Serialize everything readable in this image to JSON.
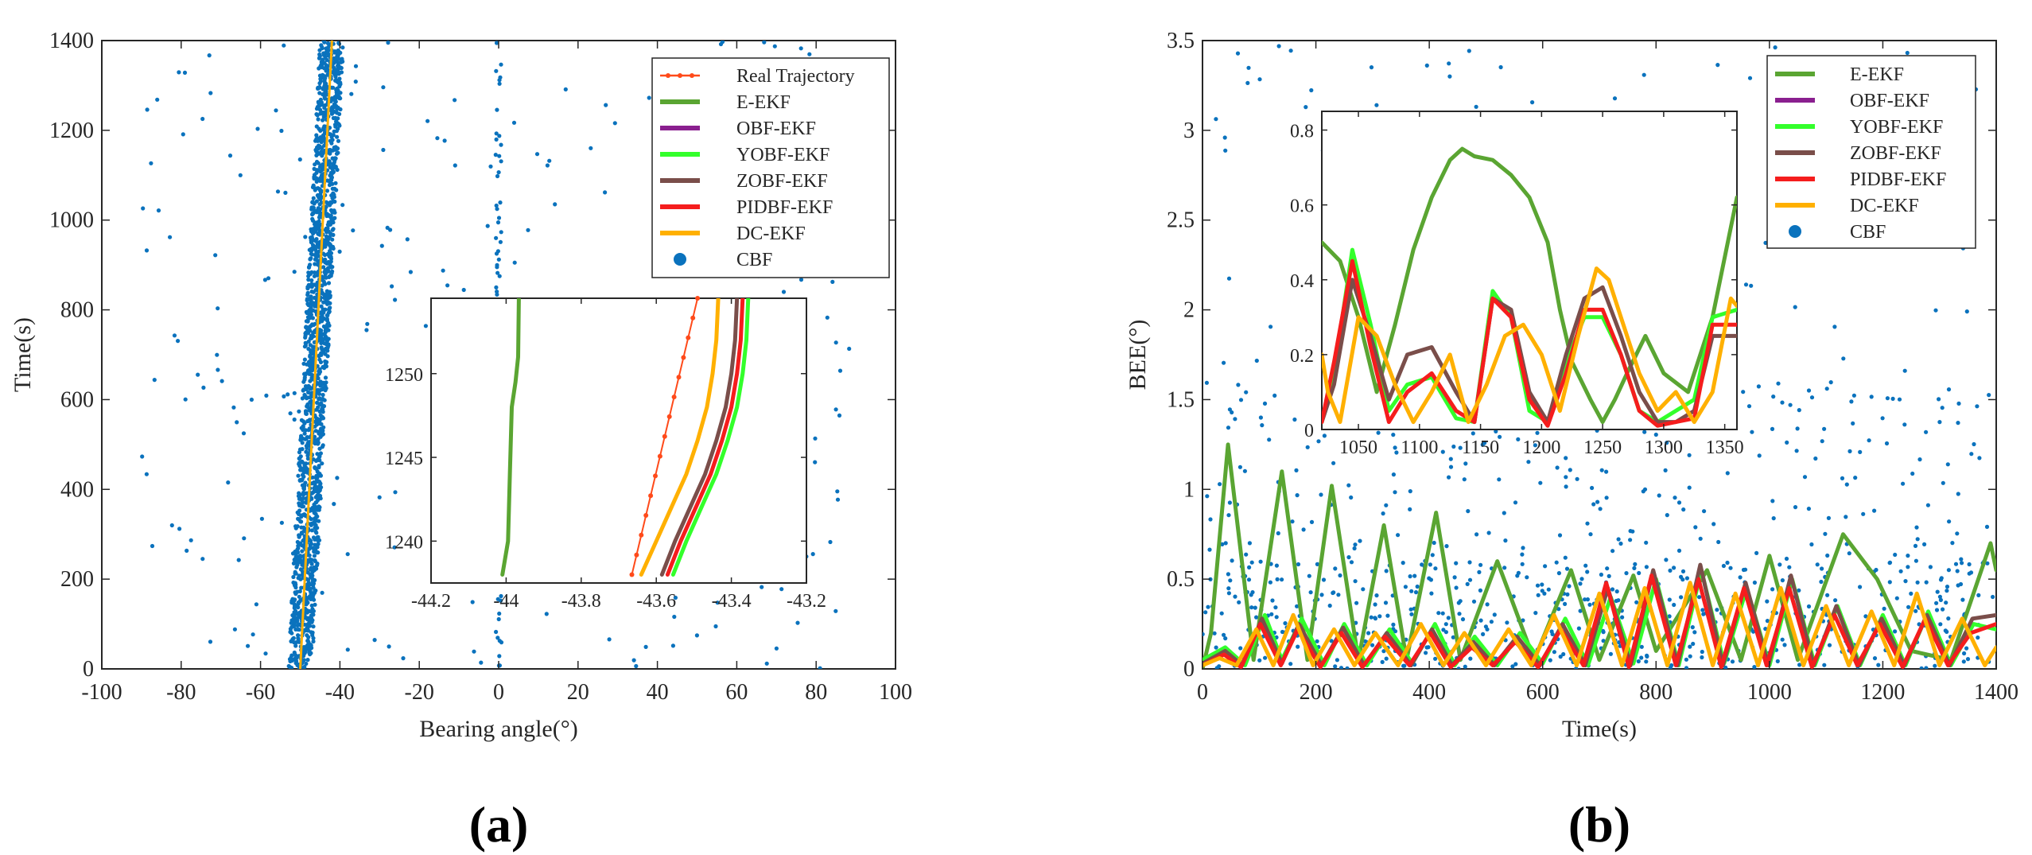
{
  "colors": {
    "real": "#ff4a1a",
    "eekf": "#5aa532",
    "obf": "#8a1f8f",
    "yobf": "#33ff2b",
    "zobf": "#7a4e4a",
    "pidbf": "#f51d1d",
    "dc": "#ffb000",
    "cbf": "#0a72bd"
  },
  "chart_data": [
    {
      "id": "a",
      "panel_label": "(a)",
      "type": "scatter",
      "xlabel": "Bearing angle(°)",
      "ylabel": "Time(s)",
      "xlim": [
        -100,
        100
      ],
      "ylim": [
        0,
        1400
      ],
      "xticks": [
        -100,
        -80,
        -60,
        -40,
        -20,
        0,
        20,
        40,
        60,
        80,
        100
      ],
      "yticks": [
        0,
        200,
        400,
        600,
        800,
        1000,
        1200,
        1400
      ],
      "legend": [
        "Real Trajectory",
        "E-EKF",
        "OBF-EKF",
        "YOBF-EKF",
        "ZOBF-EKF",
        "PIDBF-EKF",
        "DC-EKF",
        "CBF"
      ],
      "legend_position": "top-right",
      "series": [
        {
          "name": "Real Trajectory",
          "x_start": -50,
          "x_end": -42,
          "t_range": [
            0,
            1400
          ]
        },
        {
          "name": "DC-EKF",
          "x_start": -50,
          "x_end": -42,
          "t_range": [
            0,
            1400
          ]
        },
        {
          "name": "CBF",
          "band_center_start": -50,
          "band_center_end": -42,
          "band_halfwidth": 3,
          "outlier_range": [
            -90,
            90
          ]
        }
      ],
      "inset": {
        "xlim": [
          -44.2,
          -43.2
        ],
        "ylim": [
          1237.5,
          1254.5
        ],
        "xticks": [
          -44.2,
          -44,
          -43.8,
          -43.6,
          -43.4,
          -43.2
        ],
        "yticks": [
          1240,
          1245,
          1250
        ],
        "series": [
          {
            "name": "E-EKF",
            "t": [
              1238,
              1240,
              1244,
              1248,
              1249.5,
              1251,
              1254.5
            ],
            "x": [
              -44.01,
              -43.995,
              -43.99,
              -43.985,
              -43.975,
              -43.968,
              -43.966
            ]
          },
          {
            "name": "Real Trajectory",
            "t": [
              1238,
              1254.5
            ],
            "x": [
              -43.665,
              -43.49
            ]
          },
          {
            "name": "DC-EKF",
            "t": [
              1238,
              1240,
              1242,
              1244,
              1246,
              1248,
              1250,
              1252,
              1254.5
            ],
            "x": [
              -43.64,
              -43.6,
              -43.56,
              -43.52,
              -43.49,
              -43.465,
              -43.45,
              -43.44,
              -43.435
            ]
          },
          {
            "name": "ZOBF-EKF",
            "t": [
              1238,
              1240,
              1242,
              1244,
              1246,
              1248,
              1250,
              1252,
              1254.5
            ],
            "x": [
              -43.585,
              -43.55,
              -43.51,
              -43.47,
              -43.44,
              -43.415,
              -43.4,
              -43.39,
              -43.385
            ]
          },
          {
            "name": "YOBF-EKF",
            "t": [
              1238,
              1240,
              1242,
              1244,
              1246,
              1248,
              1250,
              1252,
              1254.5
            ],
            "x": [
              -43.555,
              -43.52,
              -43.48,
              -43.44,
              -43.41,
              -43.385,
              -43.37,
              -43.36,
              -43.355
            ]
          },
          {
            "name": "PIDBF-EKF",
            "t": [
              1238,
              1240,
              1242,
              1244,
              1246,
              1248,
              1250,
              1252,
              1254.5
            ],
            "x": [
              -43.57,
              -43.535,
              -43.495,
              -43.455,
              -43.425,
              -43.4,
              -43.385,
              -43.375,
              -43.37
            ]
          }
        ]
      }
    },
    {
      "id": "b",
      "panel_label": "(b)",
      "type": "line",
      "xlabel": "Time(s)",
      "ylabel": "BEE(°)",
      "xlim": [
        0,
        1400
      ],
      "ylim": [
        0,
        3.5
      ],
      "xticks": [
        0,
        200,
        400,
        600,
        800,
        1000,
        1200,
        1400
      ],
      "yticks": [
        0,
        0.5,
        1,
        1.5,
        2,
        2.5,
        3,
        3.5
      ],
      "legend": [
        "E-EKF",
        "OBF-EKF",
        "YOBF-EKF",
        "ZOBF-EKF",
        "PIDBF-EKF",
        "DC-EKF",
        "CBF"
      ],
      "legend_position": "top-right",
      "series": [
        {
          "name": "E-EKF",
          "t": [
            0,
            15,
            45,
            90,
            140,
            185,
            228,
            275,
            320,
            360,
            412,
            455,
            520,
            585,
            650,
            700,
            760,
            800,
            890,
            950,
            1000,
            1050,
            1130,
            1190,
            1250,
            1320,
            1390,
            1400
          ],
          "y": [
            0,
            0.2,
            1.25,
            0.05,
            1.1,
            0.05,
            1.02,
            0.05,
            0.8,
            0.05,
            0.87,
            0.05,
            0.6,
            0.05,
            0.55,
            0.05,
            0.52,
            0.1,
            0.55,
            0.05,
            0.63,
            0.05,
            0.75,
            0.5,
            0.1,
            0.05,
            0.7,
            0.55
          ]
        },
        {
          "name": "YOBF-EKF",
          "t": [
            0,
            40,
            75,
            110,
            140,
            175,
            215,
            250,
            290,
            330,
            370,
            410,
            445,
            480,
            520,
            560,
            600,
            640,
            680,
            720,
            760,
            800,
            840,
            880,
            920,
            960,
            1000,
            1040,
            1080,
            1120,
            1160,
            1200,
            1240,
            1280,
            1320,
            1360,
            1400
          ],
          "y": [
            0.05,
            0.12,
            0.02,
            0.3,
            0.05,
            0.28,
            0.02,
            0.25,
            0.02,
            0.22,
            0.03,
            0.25,
            0.02,
            0.18,
            0.02,
            0.2,
            0.03,
            0.28,
            0.02,
            0.4,
            0.03,
            0.5,
            0.02,
            0.55,
            0.03,
            0.45,
            0.02,
            0.5,
            0.02,
            0.35,
            0.02,
            0.3,
            0.02,
            0.32,
            0.02,
            0.25,
            0.22
          ]
        },
        {
          "name": "ZOBF-EKF",
          "t": [
            0,
            40,
            70,
            105,
            140,
            170,
            210,
            248,
            285,
            325,
            368,
            405,
            440,
            478,
            515,
            555,
            595,
            635,
            675,
            715,
            755,
            795,
            838,
            878,
            918,
            958,
            998,
            1038,
            1078,
            1118,
            1158,
            1198,
            1238,
            1278,
            1318,
            1358,
            1400
          ],
          "y": [
            0.03,
            0.1,
            0.02,
            0.28,
            0.03,
            0.25,
            0.02,
            0.23,
            0.02,
            0.2,
            0.02,
            0.22,
            0.02,
            0.15,
            0.02,
            0.18,
            0.02,
            0.25,
            0.02,
            0.45,
            0.02,
            0.55,
            0.02,
            0.58,
            0.02,
            0.48,
            0.02,
            0.52,
            0.02,
            0.35,
            0.02,
            0.28,
            0.02,
            0.3,
            0.02,
            0.28,
            0.3
          ]
        },
        {
          "name": "PIDBF-EKF",
          "t": [
            0,
            38,
            68,
            102,
            138,
            168,
            208,
            245,
            282,
            322,
            365,
            402,
            438,
            475,
            512,
            552,
            592,
            632,
            672,
            712,
            752,
            792,
            835,
            875,
            915,
            955,
            995,
            1035,
            1075,
            1115,
            1155,
            1195,
            1235,
            1275,
            1315,
            1355,
            1400
          ],
          "y": [
            0.02,
            0.08,
            0.01,
            0.25,
            0.02,
            0.22,
            0.01,
            0.2,
            0.01,
            0.18,
            0.02,
            0.2,
            0.01,
            0.12,
            0.02,
            0.15,
            0.01,
            0.22,
            0.02,
            0.48,
            0.01,
            0.52,
            0.02,
            0.5,
            0.01,
            0.45,
            0.02,
            0.45,
            0.01,
            0.3,
            0.02,
            0.25,
            0.01,
            0.28,
            0.02,
            0.2,
            0.25
          ]
        },
        {
          "name": "DC-EKF",
          "t": [
            0,
            30,
            60,
            95,
            125,
            160,
            195,
            232,
            268,
            305,
            345,
            385,
            425,
            462,
            500,
            540,
            580,
            620,
            660,
            700,
            740,
            780,
            820,
            860,
            900,
            940,
            980,
            1020,
            1060,
            1100,
            1140,
            1180,
            1220,
            1260,
            1300,
            1340,
            1380,
            1400
          ],
          "y": [
            0.02,
            0.06,
            0.02,
            0.22,
            0.02,
            0.3,
            0.02,
            0.22,
            0.02,
            0.2,
            0.02,
            0.25,
            0.02,
            0.2,
            0.02,
            0.22,
            0.02,
            0.3,
            0.02,
            0.42,
            0.02,
            0.45,
            0.02,
            0.48,
            0.02,
            0.42,
            0.02,
            0.45,
            0.02,
            0.35,
            0.02,
            0.32,
            0.02,
            0.42,
            0.02,
            0.28,
            0.02,
            0.12
          ]
        }
      ],
      "inset": {
        "xlim": [
          1020,
          1360
        ],
        "ylim": [
          0,
          0.85
        ],
        "xticks": [
          1050,
          1100,
          1150,
          1200,
          1250,
          1300,
          1350
        ],
        "yticks": [
          0,
          0.2,
          0.4,
          0.6,
          0.8
        ],
        "ytick_labels": [
          "0",
          "0.2",
          "0.4",
          "0.6",
          "0.8"
        ],
        "series": [
          {
            "name": "E-EKF",
            "t": [
              1020,
              1035,
              1050,
              1065,
              1080,
              1095,
              1110,
              1125,
              1135,
              1145,
              1160,
              1175,
              1190,
              1205,
              1215,
              1225,
              1240,
              1250,
              1260,
              1270,
              1285,
              1300,
              1320,
              1340,
              1360
            ],
            "y": [
              0.5,
              0.45,
              0.3,
              0.1,
              0.28,
              0.48,
              0.62,
              0.72,
              0.75,
              0.73,
              0.72,
              0.68,
              0.62,
              0.5,
              0.32,
              0.18,
              0.08,
              0.02,
              0.08,
              0.15,
              0.25,
              0.15,
              0.1,
              0.3,
              0.62
            ]
          },
          {
            "name": "YOBF-EKF",
            "t": [
              1020,
              1030,
              1045,
              1060,
              1075,
              1090,
              1110,
              1130,
              1145,
              1160,
              1175,
              1190,
              1205,
              1220,
              1235,
              1250,
              1265,
              1280,
              1295,
              1310,
              1325,
              1340,
              1360
            ],
            "y": [
              0.02,
              0.15,
              0.48,
              0.28,
              0.05,
              0.12,
              0.14,
              0.03,
              0.02,
              0.37,
              0.3,
              0.05,
              0.02,
              0.18,
              0.3,
              0.3,
              0.2,
              0.05,
              0.02,
              0.05,
              0.08,
              0.3,
              0.32
            ]
          },
          {
            "name": "ZOBF-EKF",
            "t": [
              1020,
              1030,
              1045,
              1060,
              1075,
              1090,
              1110,
              1130,
              1145,
              1160,
              1175,
              1190,
              1205,
              1220,
              1235,
              1250,
              1265,
              1280,
              1295,
              1310,
              1325,
              1340,
              1360
            ],
            "y": [
              0.02,
              0.12,
              0.4,
              0.25,
              0.08,
              0.2,
              0.22,
              0.1,
              0.02,
              0.35,
              0.32,
              0.1,
              0.02,
              0.2,
              0.35,
              0.38,
              0.25,
              0.1,
              0.02,
              0.02,
              0.05,
              0.25,
              0.25
            ]
          },
          {
            "name": "PIDBF-EKF",
            "t": [
              1020,
              1030,
              1045,
              1060,
              1075,
              1090,
              1110,
              1130,
              1145,
              1160,
              1175,
              1190,
              1205,
              1220,
              1235,
              1250,
              1265,
              1280,
              1295,
              1310,
              1325,
              1340,
              1360
            ],
            "y": [
              0.02,
              0.18,
              0.45,
              0.22,
              0.02,
              0.1,
              0.15,
              0.05,
              0.02,
              0.35,
              0.3,
              0.08,
              0.01,
              0.15,
              0.32,
              0.32,
              0.2,
              0.05,
              0.01,
              0.02,
              0.03,
              0.28,
              0.28
            ]
          },
          {
            "name": "DC-EKF",
            "t": [
              1020,
              1025,
              1035,
              1050,
              1065,
              1080,
              1095,
              1110,
              1125,
              1140,
              1155,
              1170,
              1185,
              1200,
              1215,
              1230,
              1245,
              1255,
              1265,
              1280,
              1295,
              1310,
              1325,
              1340,
              1355,
              1360
            ],
            "y": [
              0.2,
              0.1,
              0.02,
              0.3,
              0.25,
              0.12,
              0.02,
              0.1,
              0.2,
              0.02,
              0.12,
              0.25,
              0.28,
              0.2,
              0.05,
              0.25,
              0.43,
              0.4,
              0.3,
              0.15,
              0.05,
              0.1,
              0.02,
              0.1,
              0.35,
              0.33
            ]
          }
        ]
      }
    }
  ]
}
